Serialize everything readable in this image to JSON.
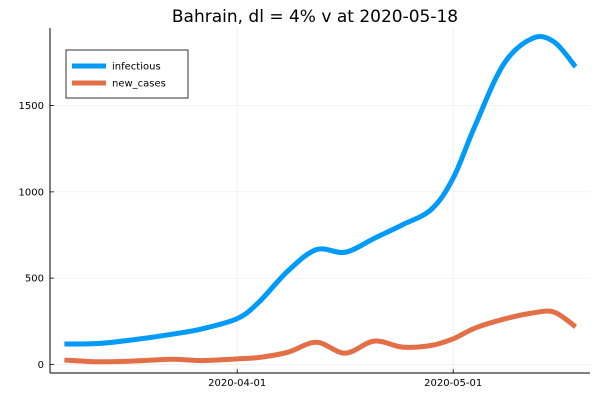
{
  "chart_data": {
    "type": "line",
    "title": "Bahrain,  dl = 4% v at 2020-05-18",
    "xlabel": "",
    "ylabel": "",
    "x_start": "2020-03-08",
    "x_end": "2020-05-18",
    "xlim": [
      "2020-03-06",
      "2020-05-20"
    ],
    "ylim": [
      -50,
      1950
    ],
    "x_ticks": [
      {
        "date": "2020-04-01",
        "label": "2020-04-01"
      },
      {
        "date": "2020-05-01",
        "label": "2020-05-01"
      }
    ],
    "y_ticks": [
      {
        "value": 0,
        "label": "0"
      },
      {
        "value": 500,
        "label": "500"
      },
      {
        "value": 1000,
        "label": "1000"
      },
      {
        "value": 1500,
        "label": "1500"
      }
    ],
    "grid": true,
    "legend_position": "top-left",
    "series": [
      {
        "name": "infectious",
        "color": "#009AFA",
        "x": [
          "2020-03-08",
          "2020-03-13",
          "2020-03-18",
          "2020-03-23",
          "2020-03-27",
          "2020-04-01",
          "2020-04-04",
          "2020-04-08",
          "2020-04-12",
          "2020-04-16",
          "2020-04-20",
          "2020-04-24",
          "2020-04-28",
          "2020-05-01",
          "2020-05-04",
          "2020-05-08",
          "2020-05-12",
          "2020-05-15",
          "2020-05-18"
        ],
        "values": [
          118,
          122,
          145,
          175,
          205,
          265,
          360,
          540,
          665,
          650,
          730,
          810,
          900,
          1080,
          1380,
          1740,
          1890,
          1870,
          1725
        ]
      },
      {
        "name": "new_cases",
        "color": "#E26F46",
        "x": [
          "2020-03-08",
          "2020-03-13",
          "2020-03-18",
          "2020-03-23",
          "2020-03-27",
          "2020-04-01",
          "2020-04-04",
          "2020-04-08",
          "2020-04-12",
          "2020-04-16",
          "2020-04-20",
          "2020-04-24",
          "2020-04-28",
          "2020-05-01",
          "2020-05-04",
          "2020-05-08",
          "2020-05-12",
          "2020-05-15",
          "2020-05-18"
        ],
        "values": [
          25,
          15,
          20,
          30,
          22,
          32,
          40,
          70,
          128,
          65,
          135,
          100,
          110,
          148,
          210,
          262,
          298,
          303,
          218
        ]
      }
    ]
  }
}
